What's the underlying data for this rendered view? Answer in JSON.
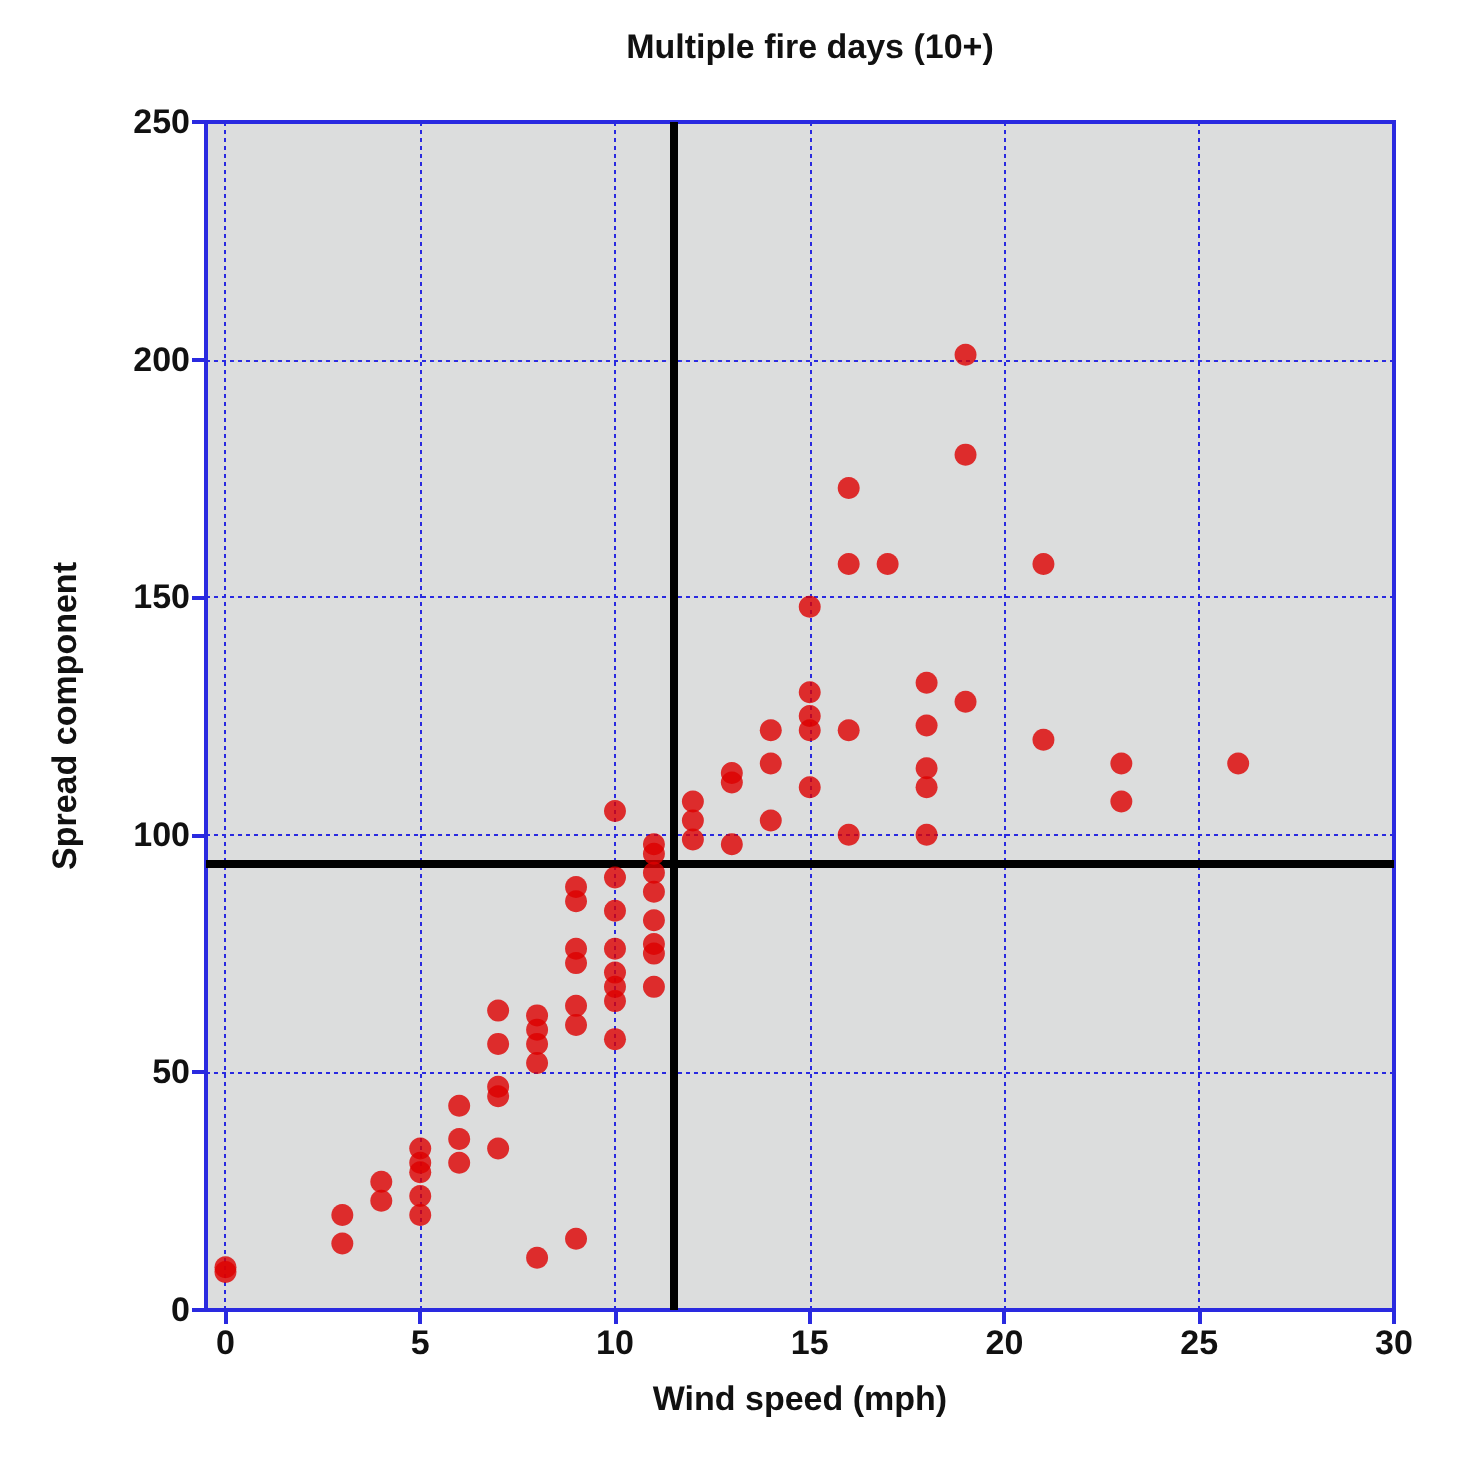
{
  "chart_data": {
    "type": "scatter",
    "title": "Multiple fire days (10+)",
    "xlabel": "Wind speed (mph)",
    "ylabel": "Spread component",
    "x": [
      0,
      0,
      3,
      3,
      4,
      4,
      5,
      5,
      5,
      5,
      5,
      6,
      6,
      6,
      7,
      7,
      7,
      7,
      7,
      8,
      8,
      8,
      8,
      8,
      9,
      9,
      9,
      9,
      9,
      9,
      9,
      10,
      10,
      10,
      10,
      10,
      10,
      10,
      10,
      11,
      11,
      11,
      11,
      11,
      11,
      11,
      11,
      12,
      12,
      12,
      13,
      13,
      13,
      14,
      14,
      14,
      15,
      15,
      15,
      15,
      15,
      16,
      16,
      16,
      16,
      17,
      18,
      18,
      18,
      18,
      18,
      19,
      19,
      19,
      21,
      21,
      23,
      23,
      26
    ],
    "values": [
      9,
      8,
      20,
      14,
      27,
      23,
      34,
      31,
      29,
      24,
      20,
      43,
      36,
      31,
      63,
      56,
      47,
      45,
      34,
      62,
      59,
      56,
      52,
      11,
      89,
      86,
      76,
      73,
      64,
      60,
      15,
      105,
      91,
      84,
      76,
      71,
      68,
      65,
      57,
      98,
      96,
      92,
      88,
      82,
      77,
      75,
      68,
      107,
      103,
      99,
      113,
      111,
      98,
      122,
      115,
      103,
      148,
      130,
      125,
      122,
      110,
      173,
      157,
      122,
      100,
      157,
      132,
      123,
      114,
      110,
      100,
      201,
      180,
      128,
      157,
      120,
      115,
      107,
      115
    ],
    "color": "#dd0000",
    "marker": "circle",
    "grid": true,
    "xlim": [
      -0.5,
      30
    ],
    "xticks": [
      0,
      5,
      10,
      15,
      20,
      25,
      30
    ],
    "ylim": [
      0,
      250
    ],
    "yticks": [
      0,
      50,
      100,
      150,
      200,
      250
    ],
    "ref_lines": [
      {
        "axis": "x",
        "value": 11.5,
        "color": "#000000",
        "line_style": "solid"
      },
      {
        "axis": "y",
        "value": 94,
        "color": "#000000",
        "line_style": "solid"
      }
    ]
  }
}
